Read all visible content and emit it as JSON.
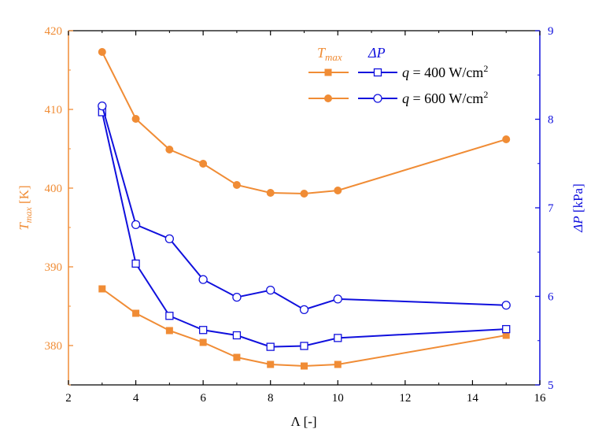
{
  "chart_data": {
    "type": "line",
    "colors": {
      "left": "#f08c35",
      "right": "#1010dd",
      "axis": "#000000"
    },
    "x": [
      3,
      4,
      5,
      6,
      7,
      8,
      9,
      10,
      15
    ],
    "xlabel": "Λ [-]",
    "xlim": [
      2,
      16
    ],
    "xticks": [
      2,
      4,
      6,
      8,
      10,
      12,
      14,
      16
    ],
    "ylabel_left": {
      "main": "T",
      "sub": "max",
      "unit": " [K]"
    },
    "ylim_left": [
      375,
      420
    ],
    "yticks_left": [
      380,
      390,
      400,
      410,
      420
    ],
    "ylabel_right": {
      "main": "ΔP",
      "unit": " [kPa]"
    },
    "ylim_right": [
      5,
      9
    ],
    "yticks_right": [
      5,
      6,
      7,
      8,
      9
    ],
    "legend": {
      "position": "top-right",
      "header_left": {
        "main": "T",
        "sub": "max"
      },
      "header_right": "ΔP",
      "rows": [
        {
          "q": "q",
          "text": " = 400 W/cm",
          "sup": "2"
        },
        {
          "q": "q",
          "text": " = 600 W/cm",
          "sup": "2"
        }
      ]
    },
    "series": [
      {
        "axis": "left",
        "marker": "square-filled",
        "values": [
          387.2,
          384.1,
          381.9,
          380.4,
          378.5,
          377.6,
          377.4,
          377.6,
          381.3
        ]
      },
      {
        "axis": "left",
        "marker": "circle-filled",
        "values": [
          417.3,
          408.8,
          404.9,
          403.1,
          400.4,
          399.4,
          399.3,
          399.7,
          406.2
        ]
      },
      {
        "axis": "right",
        "marker": "square-open",
        "values": [
          8.08,
          6.37,
          5.78,
          5.62,
          5.56,
          5.43,
          5.44,
          5.53,
          5.63
        ]
      },
      {
        "axis": "right",
        "marker": "circle-open",
        "values": [
          8.15,
          6.81,
          6.65,
          6.19,
          5.99,
          6.07,
          5.85,
          5.97,
          5.9
        ]
      }
    ]
  }
}
